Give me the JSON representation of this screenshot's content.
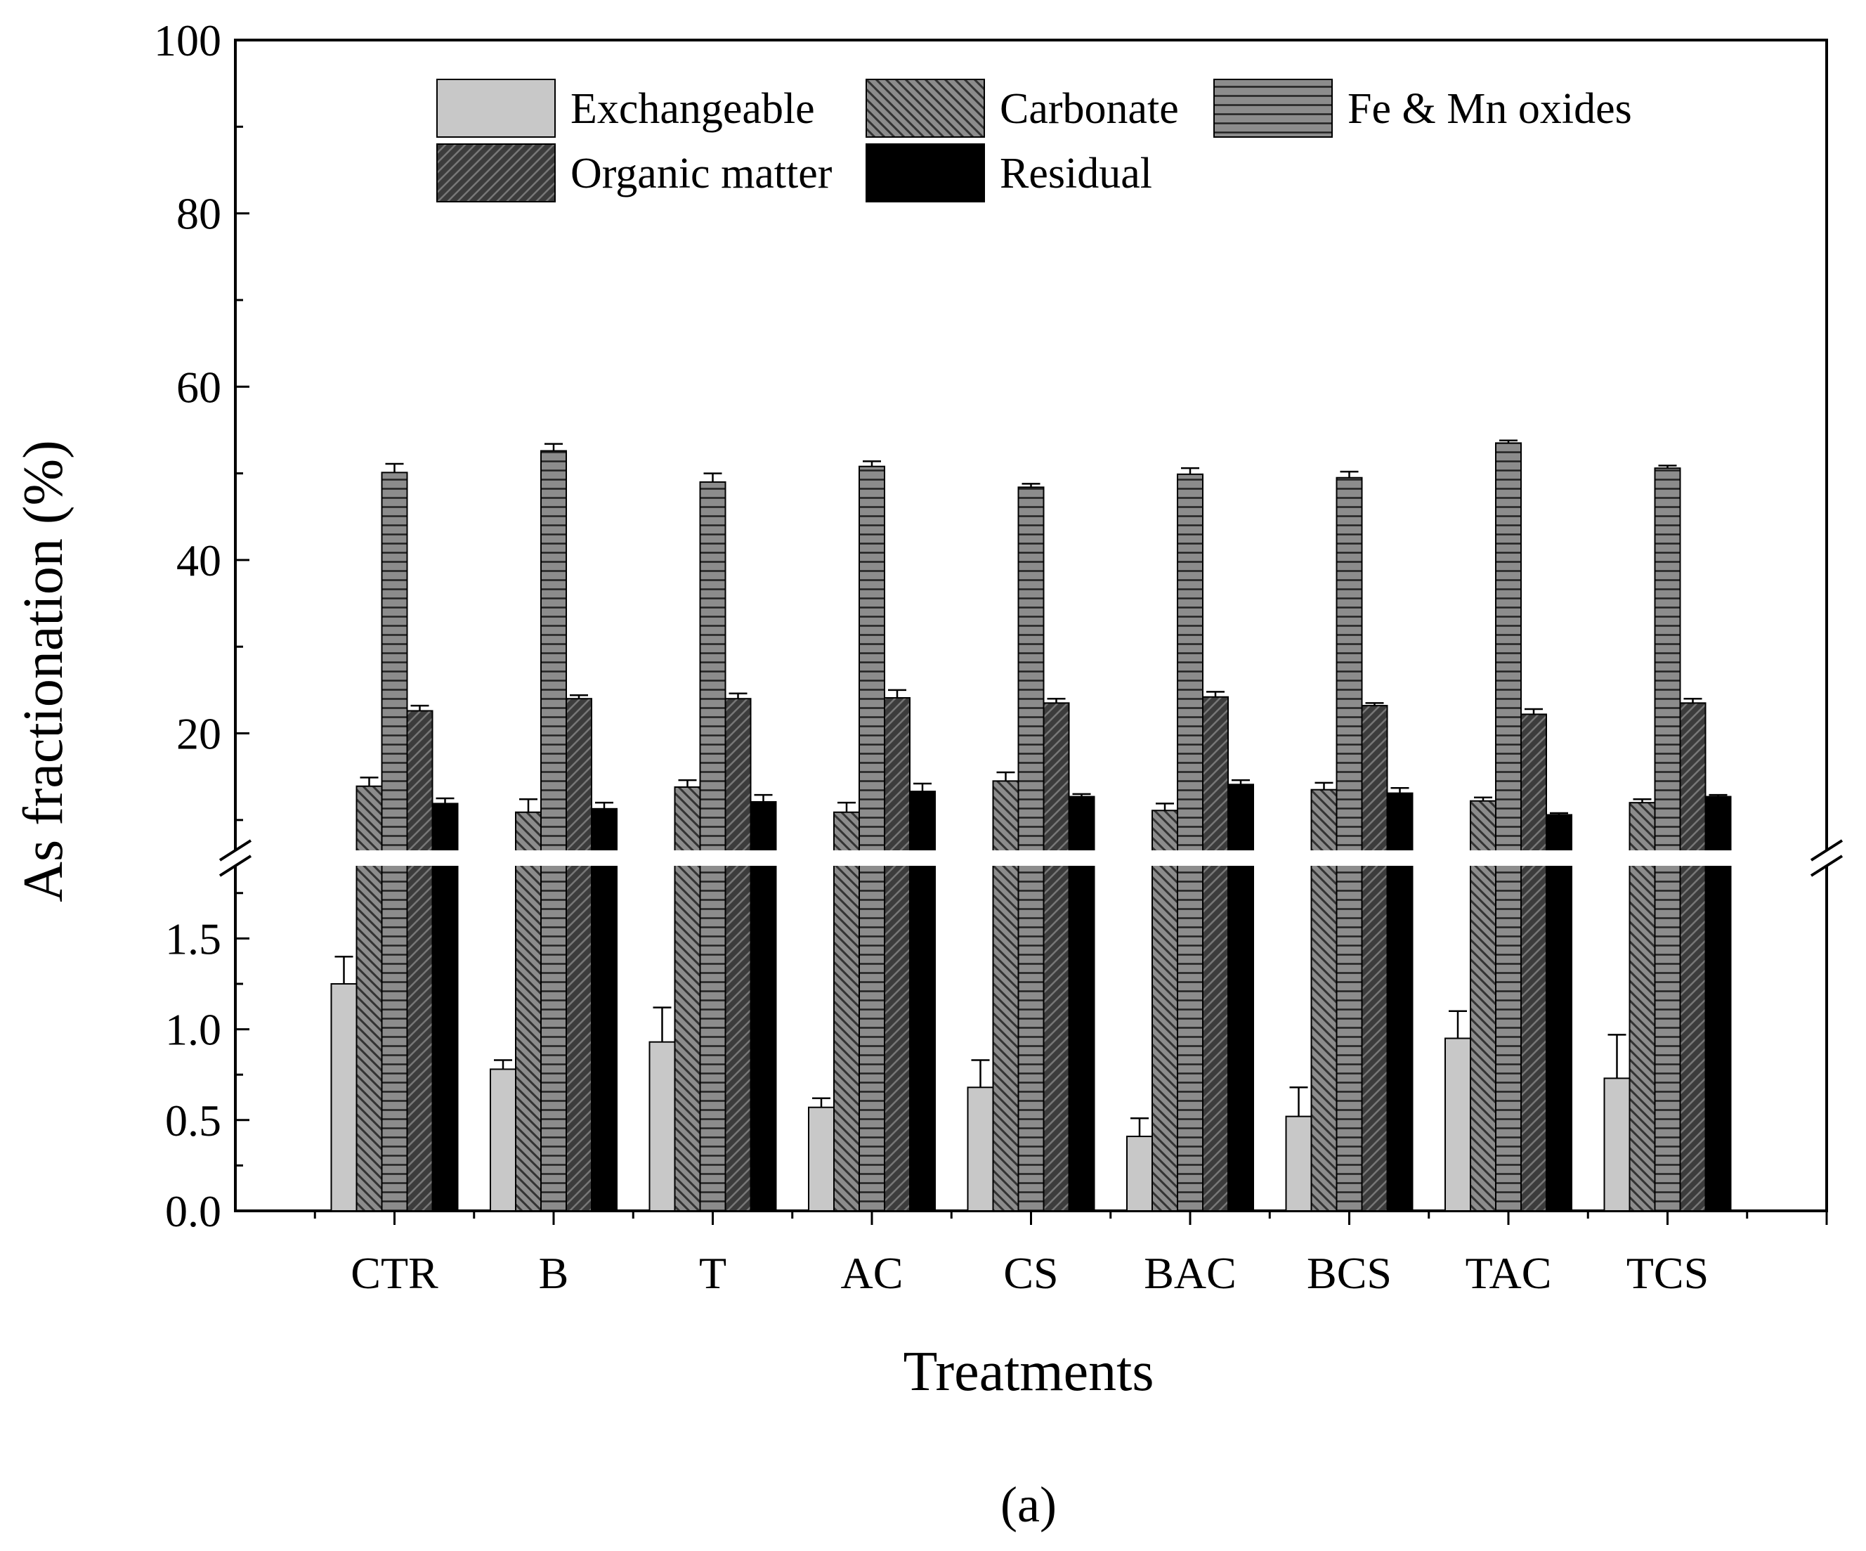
{
  "figure_label": "(a)",
  "chart_data": {
    "type": "bar",
    "title": "",
    "xlabel": "Treatments",
    "ylabel": "As fractionation (%)",
    "categories": [
      "CTR",
      "B",
      "T",
      "AC",
      "CS",
      "BAC",
      "BCS",
      "TAC",
      "TCS"
    ],
    "axis_break": {
      "lower_range": [
        0,
        1.9
      ],
      "upper_range": [
        6.5,
        100
      ],
      "lower_ticks": [
        "0.0",
        "0.5",
        "1.0",
        "1.5"
      ],
      "upper_ticks": [
        "20",
        "40",
        "60",
        "80",
        "100"
      ]
    },
    "series": [
      {
        "name": "Exchangeable",
        "pattern": "light-solid",
        "color": "#c8c8c8",
        "values": [
          1.25,
          0.78,
          0.93,
          0.57,
          0.68,
          0.41,
          0.52,
          0.95,
          0.73
        ],
        "errors": [
          0.15,
          0.05,
          0.19,
          0.05,
          0.15,
          0.1,
          0.16,
          0.15,
          0.24
        ]
      },
      {
        "name": "Carbonate",
        "pattern": "back-diagonal",
        "color": "#8c8c8c",
        "values": [
          13.9,
          10.9,
          13.8,
          10.9,
          14.5,
          11.1,
          13.5,
          12.2,
          12.0
        ],
        "errors": [
          1.0,
          1.5,
          0.8,
          1.1,
          1.0,
          0.8,
          0.8,
          0.4,
          0.4
        ]
      },
      {
        "name": "Fe & Mn oxides",
        "pattern": "horizontal",
        "color": "#8c8c8c",
        "values": [
          50.1,
          52.6,
          49.0,
          50.8,
          48.4,
          49.9,
          49.5,
          53.5,
          50.6
        ],
        "errors": [
          1.0,
          0.8,
          1.0,
          0.6,
          0.4,
          0.7,
          0.7,
          0.3,
          0.3
        ]
      },
      {
        "name": "Organic matter",
        "pattern": "forward-diagonal",
        "color": "#3c3c3c",
        "values": [
          22.6,
          24.0,
          24.0,
          24.1,
          23.5,
          24.2,
          23.2,
          22.2,
          23.5
        ],
        "errors": [
          0.6,
          0.4,
          0.6,
          0.9,
          0.5,
          0.6,
          0.3,
          0.6,
          0.5
        ]
      },
      {
        "name": "Residual",
        "pattern": "solid",
        "color": "#000000",
        "values": [
          11.9,
          11.3,
          12.1,
          13.3,
          12.7,
          14.1,
          13.1,
          10.6,
          12.7
        ],
        "errors": [
          0.6,
          0.7,
          0.8,
          0.9,
          0.3,
          0.5,
          0.6,
          0.2,
          0.2
        ]
      }
    ],
    "legend_placement": "top-center",
    "grid": false
  }
}
